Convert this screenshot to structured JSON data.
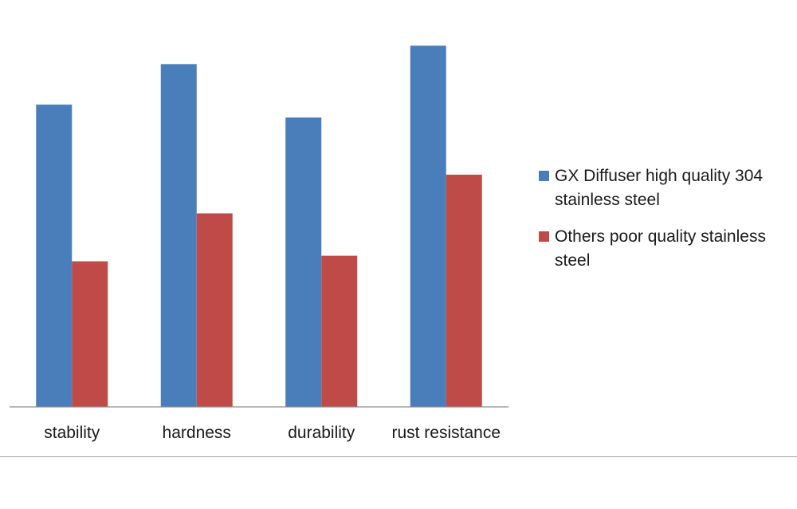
{
  "chart_data": {
    "type": "bar",
    "categories": [
      "stability",
      "hardness",
      "durability",
      "rust resistance"
    ],
    "series": [
      {
        "name": "GX Diffuser  high quality 304 stainless steel",
        "color": "#4a7ebb",
        "values": [
          82,
          93,
          78.5,
          98
        ]
      },
      {
        "name": "Others poor quality stainless steel",
        "color": "#be4b48",
        "values": [
          39.5,
          52.5,
          41,
          63
        ]
      }
    ],
    "ylim": [
      0,
      100
    ],
    "grid": false,
    "legend_position": "right",
    "title": "",
    "xlabel": "",
    "ylabel": ""
  }
}
